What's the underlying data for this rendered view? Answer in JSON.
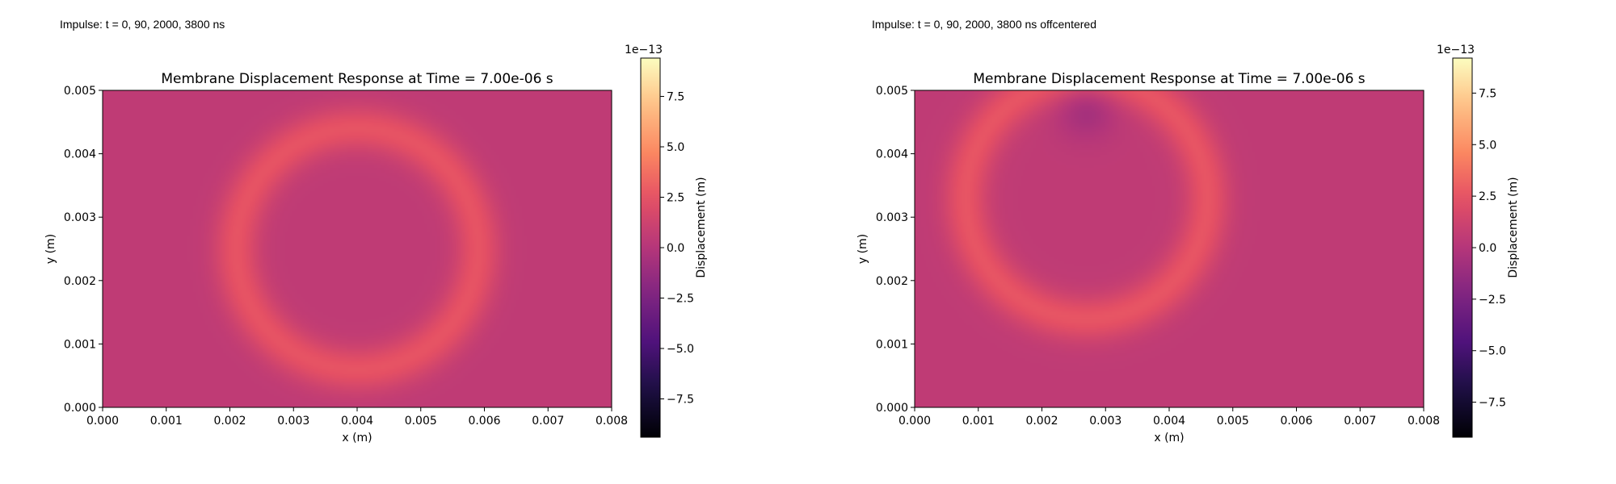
{
  "panels": [
    {
      "caption": "Impulse: t = 0, 90, 2000, 3800 ns",
      "chart_data": {
        "type": "heatmap",
        "title": "Membrane Displacement Response at Time = 7.00e-06 s",
        "xlabel": "x (m)",
        "ylabel": "y (m)",
        "xlim": [
          0,
          0.008
        ],
        "ylim": [
          0,
          0.005
        ],
        "xticks": [
          "0.000",
          "0.001",
          "0.002",
          "0.003",
          "0.004",
          "0.005",
          "0.006",
          "0.007",
          "0.008"
        ],
        "yticks": [
          "0.000",
          "0.001",
          "0.002",
          "0.003",
          "0.004",
          "0.005"
        ],
        "colormap": "magma",
        "colorbar": {
          "label": "Displacement (m)",
          "offset": "1e−13",
          "range": [
            -9.4,
            9.4
          ],
          "ticks": [
            "−7.5",
            "−5.0",
            "−2.5",
            "0.0",
            "2.5",
            "5.0",
            "7.5"
          ]
        },
        "features": [
          {
            "shape": "ring",
            "cx": 0.004,
            "cy": 0.0025,
            "radius": 0.0019,
            "width": 0.00035,
            "peak": 2.6
          }
        ],
        "background": 0.5
      }
    },
    {
      "caption": "Impulse: t = 0, 90, 2000, 3800 ns offcentered",
      "chart_data": {
        "type": "heatmap",
        "title": "Membrane Displacement Response at Time = 7.00e-06 s",
        "xlabel": "x (m)",
        "ylabel": "y (m)",
        "xlim": [
          0,
          0.008
        ],
        "ylim": [
          0,
          0.005
        ],
        "xticks": [
          "0.000",
          "0.001",
          "0.002",
          "0.003",
          "0.004",
          "0.005",
          "0.006",
          "0.007",
          "0.008"
        ],
        "yticks": [
          "0.000",
          "0.001",
          "0.002",
          "0.003",
          "0.004",
          "0.005"
        ],
        "colormap": "magma",
        "colorbar": {
          "label": "Displacement (m)",
          "offset": "1e−13",
          "range": [
            -9.2,
            9.2
          ],
          "ticks": [
            "−7.5",
            "−5.0",
            "−2.5",
            "0.0",
            "2.5",
            "5.0",
            "7.5"
          ]
        },
        "features": [
          {
            "shape": "ring",
            "cx": 0.0027,
            "cy": 0.0033,
            "radius": 0.0019,
            "width": 0.00035,
            "peak": 2.6
          },
          {
            "shape": "trough",
            "cx": 0.0027,
            "cy": 0.0047,
            "value": -0.8
          }
        ],
        "background": 0.5
      }
    }
  ]
}
